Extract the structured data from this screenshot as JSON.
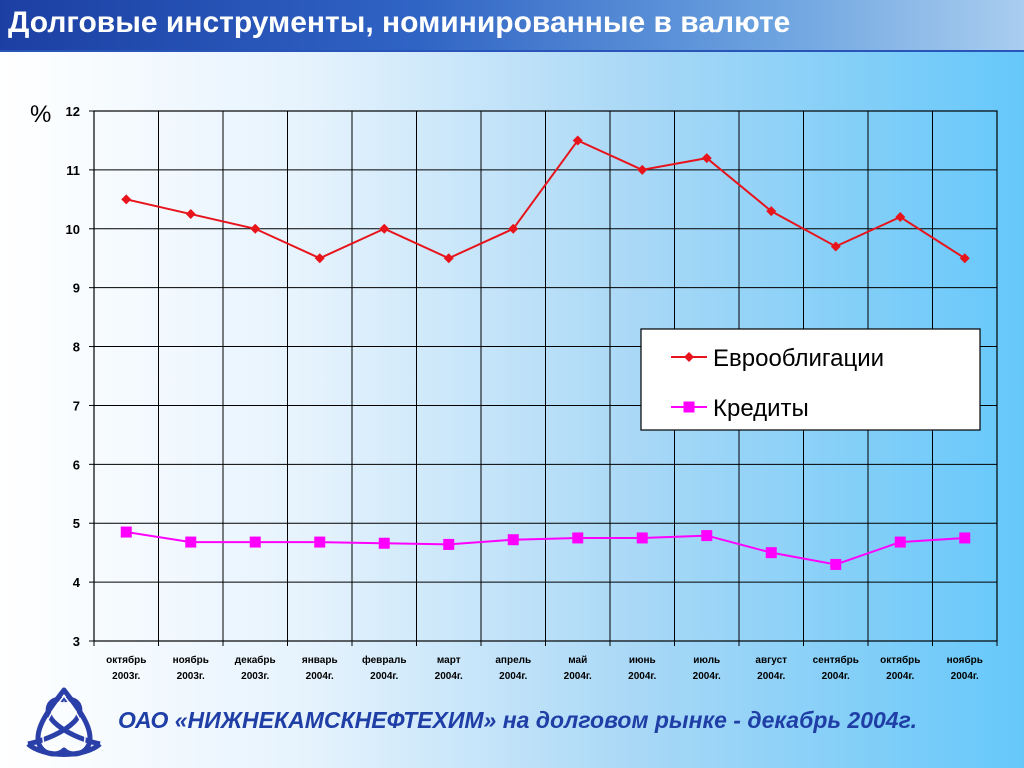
{
  "header": {
    "title": "Долговые инструменты, номинированные в валюте",
    "background_color": "#1c3fa3"
  },
  "footer": {
    "text": "ОАО «НИЖНЕКАМСКНЕФТЕХИМ» на долговом рынке - декабрь 2004г.",
    "text_color": "#1f3ea6",
    "logo_icon": "trefoil-knot-logo-icon"
  },
  "chart_data": {
    "type": "line",
    "ylabel": "%",
    "ylim": [
      3,
      12
    ],
    "yticks": [
      3,
      4,
      5,
      6,
      7,
      8,
      9,
      10,
      11,
      12
    ],
    "grid": true,
    "legend_position": "right",
    "categories": [
      [
        "октябрь",
        "2003г."
      ],
      [
        "ноябрь",
        "2003г."
      ],
      [
        "декабрь",
        "2003г."
      ],
      [
        "январь",
        "2004г."
      ],
      [
        "февраль",
        "2004г."
      ],
      [
        "март",
        "2004г."
      ],
      [
        "апрель",
        "2004г."
      ],
      [
        "май",
        "2004г."
      ],
      [
        "июнь",
        "2004г."
      ],
      [
        "июль",
        "2004г."
      ],
      [
        "август",
        "2004г."
      ],
      [
        "сентябрь",
        "2004г."
      ],
      [
        "октябрь",
        "2004г."
      ],
      [
        "ноябрь",
        "2004г."
      ]
    ],
    "series": [
      {
        "name": "Еврооблигации",
        "color": "#e8141c",
        "marker": "diamond",
        "values": [
          10.5,
          10.25,
          10.0,
          9.5,
          10.0,
          9.5,
          10.0,
          11.5,
          11.0,
          11.2,
          10.3,
          9.7,
          10.2,
          9.5
        ]
      },
      {
        "name": "Кредиты",
        "color": "#ff00ff",
        "marker": "square",
        "values": [
          4.85,
          4.68,
          4.68,
          4.68,
          4.66,
          4.64,
          4.72,
          4.75,
          4.75,
          4.79,
          4.5,
          4.3,
          4.68,
          4.75
        ]
      }
    ]
  }
}
